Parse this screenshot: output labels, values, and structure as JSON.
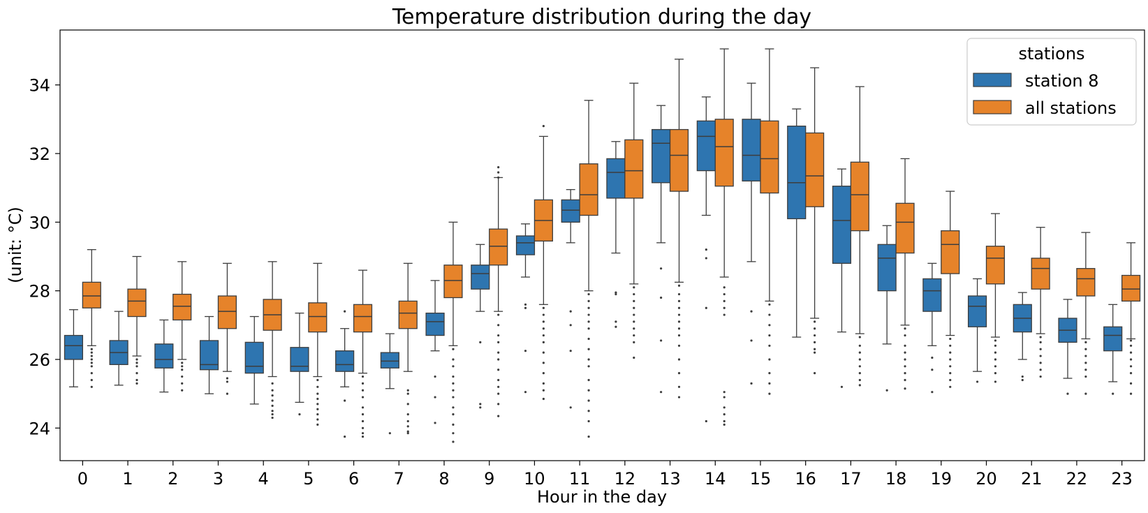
{
  "chart_data": {
    "type": "box",
    "title": "Temperature distribution during the day",
    "xlabel": "Hour in the day",
    "ylabel": "(unit: °C)",
    "ylim": [
      23.05,
      35.6
    ],
    "yticks": [
      24,
      26,
      28,
      30,
      32,
      34
    ],
    "categories": [
      "0",
      "1",
      "2",
      "3",
      "4",
      "5",
      "6",
      "7",
      "8",
      "9",
      "10",
      "11",
      "12",
      "13",
      "14",
      "15",
      "16",
      "17",
      "18",
      "19",
      "20",
      "21",
      "22",
      "23"
    ],
    "legend": {
      "title": "stations",
      "position": "top-right"
    },
    "grid": false,
    "series": [
      {
        "name": "station 8",
        "color": "#2e75b0",
        "boxes": [
          {
            "wlo": 25.2,
            "q1": 26.0,
            "med": 26.4,
            "q3": 26.7,
            "whi": 27.45,
            "outliers": []
          },
          {
            "wlo": 25.25,
            "q1": 25.85,
            "med": 26.2,
            "q3": 26.55,
            "whi": 27.4,
            "outliers": []
          },
          {
            "wlo": 25.05,
            "q1": 25.75,
            "med": 26.0,
            "q3": 26.45,
            "whi": 27.15,
            "outliers": []
          },
          {
            "wlo": 25.0,
            "q1": 25.7,
            "med": 25.85,
            "q3": 26.55,
            "whi": 27.25,
            "outliers": []
          },
          {
            "wlo": 24.7,
            "q1": 25.6,
            "med": 25.8,
            "q3": 26.5,
            "whi": 27.25,
            "outliers": []
          },
          {
            "wlo": 24.75,
            "q1": 25.65,
            "med": 25.8,
            "q3": 26.35,
            "whi": 27.35,
            "outliers": [
              24.4
            ]
          },
          {
            "wlo": 25.2,
            "q1": 25.65,
            "med": 25.85,
            "q3": 26.25,
            "whi": 26.9,
            "outliers": [
              27.4,
              24.8,
              23.75
            ]
          },
          {
            "wlo": 25.15,
            "q1": 25.75,
            "med": 25.95,
            "q3": 26.2,
            "whi": 26.75,
            "outliers": [
              23.85
            ]
          },
          {
            "wlo": 26.25,
            "q1": 26.7,
            "med": 27.1,
            "q3": 27.35,
            "whi": 28.3,
            "outliers": [
              25.5,
              24.9,
              24.15
            ]
          },
          {
            "wlo": 27.4,
            "q1": 28.05,
            "med": 28.5,
            "q3": 28.75,
            "whi": 29.35,
            "outliers": [
              26.5,
              24.7,
              24.6
            ]
          },
          {
            "wlo": 28.4,
            "q1": 29.05,
            "med": 29.4,
            "q3": 29.6,
            "whi": 29.95,
            "outliers": [
              27.6,
              27.5,
              26.25,
              25.05
            ]
          },
          {
            "wlo": 29.4,
            "q1": 30.0,
            "med": 30.35,
            "q3": 30.65,
            "whi": 30.95,
            "outliers": [
              27.4,
              27.0,
              26.25,
              24.6
            ]
          },
          {
            "wlo": 29.1,
            "q1": 30.7,
            "med": 31.45,
            "q3": 31.85,
            "whi": 32.35,
            "outliers": [
              27.95,
              27.9,
              27.1,
              26.95
            ]
          },
          {
            "wlo": 29.4,
            "q1": 31.15,
            "med": 32.3,
            "q3": 32.7,
            "whi": 33.4,
            "outliers": [
              28.65,
              27.8,
              26.55,
              25.05
            ]
          },
          {
            "wlo": 30.2,
            "q1": 31.5,
            "med": 32.5,
            "q3": 32.95,
            "whi": 33.65,
            "outliers": [
              29.2,
              28.95,
              27.5,
              24.2
            ]
          },
          {
            "wlo": 28.85,
            "q1": 31.2,
            "med": 31.95,
            "q3": 33.0,
            "whi": 34.05,
            "outliers": [
              27.4,
              26.55,
              25.3
            ]
          },
          {
            "wlo": 26.65,
            "q1": 30.1,
            "med": 31.15,
            "q3": 32.8,
            "whi": 33.3,
            "outliers": []
          },
          {
            "wlo": 26.8,
            "q1": 28.8,
            "med": 30.05,
            "q3": 31.05,
            "whi": 31.55,
            "outliers": [
              25.2
            ]
          },
          {
            "wlo": 26.45,
            "q1": 28.0,
            "med": 28.95,
            "q3": 29.35,
            "whi": 29.9,
            "outliers": [
              25.1
            ]
          },
          {
            "wlo": 26.4,
            "q1": 27.4,
            "med": 28.0,
            "q3": 28.35,
            "whi": 28.8,
            "outliers": [
              26.05,
              25.7,
              25.05
            ]
          },
          {
            "wlo": 25.65,
            "q1": 26.95,
            "med": 27.55,
            "q3": 27.85,
            "whi": 28.35,
            "outliers": [
              25.35
            ]
          },
          {
            "wlo": 26.0,
            "q1": 26.8,
            "med": 27.2,
            "q3": 27.6,
            "whi": 27.95,
            "outliers": [
              25.5,
              25.4
            ]
          },
          {
            "wlo": 25.45,
            "q1": 26.5,
            "med": 26.85,
            "q3": 27.2,
            "whi": 27.75,
            "outliers": [
              25.0
            ]
          },
          {
            "wlo": 25.35,
            "q1": 26.25,
            "med": 26.7,
            "q3": 26.95,
            "whi": 27.6,
            "outliers": [
              25.0
            ]
          }
        ]
      },
      {
        "name": "all stations",
        "color": "#e6832a",
        "boxes": [
          {
            "wlo": 26.4,
            "q1": 27.5,
            "med": 27.85,
            "q3": 28.25,
            "whi": 29.2,
            "outliers": [
              26.3,
              26.2,
              26.1,
              26.0,
              25.9,
              25.8,
              25.6,
              25.4,
              25.2
            ]
          },
          {
            "wlo": 26.1,
            "q1": 27.25,
            "med": 27.7,
            "q3": 28.05,
            "whi": 29.0,
            "outliers": [
              26.0,
              25.9,
              25.8,
              25.6,
              25.4,
              25.3
            ]
          },
          {
            "wlo": 26.0,
            "q1": 27.15,
            "med": 27.55,
            "q3": 27.9,
            "whi": 28.85,
            "outliers": [
              25.9,
              25.8,
              25.7,
              25.5,
              25.3,
              25.1
            ]
          },
          {
            "wlo": 25.65,
            "q1": 26.9,
            "med": 27.4,
            "q3": 27.85,
            "whi": 28.8,
            "outliers": [
              25.45,
              25.35,
              25.0
            ]
          },
          {
            "wlo": 25.5,
            "q1": 26.85,
            "med": 27.3,
            "q3": 27.75,
            "whi": 28.85,
            "outliers": [
              25.3,
              25.1,
              24.95,
              24.8,
              24.65,
              24.5,
              24.4,
              24.3
            ]
          },
          {
            "wlo": 25.5,
            "q1": 26.8,
            "med": 27.25,
            "q3": 27.65,
            "whi": 28.8,
            "outliers": [
              25.4,
              25.2,
              25.0,
              24.85,
              24.7,
              24.55,
              24.4,
              24.25,
              24.1
            ]
          },
          {
            "wlo": 25.6,
            "q1": 26.8,
            "med": 27.25,
            "q3": 27.6,
            "whi": 28.6,
            "outliers": [
              25.5,
              25.3,
              25.1,
              24.9,
              24.6,
              24.4,
              24.2,
              24.0,
              23.85,
              23.75
            ]
          },
          {
            "wlo": 25.65,
            "q1": 26.9,
            "med": 27.35,
            "q3": 27.7,
            "whi": 28.8,
            "outliers": [
              25.1,
              25.0,
              24.7,
              24.4,
              24.2,
              24.05,
              23.9,
              23.85
            ]
          },
          {
            "wlo": 26.4,
            "q1": 27.8,
            "med": 28.3,
            "q3": 28.75,
            "whi": 30.0,
            "outliers": [
              26.3,
              26.0,
              25.8,
              25.5,
              25.3,
              25.1,
              24.9,
              24.6,
              24.4,
              24.1,
              23.85,
              23.6
            ]
          },
          {
            "wlo": 27.4,
            "q1": 28.75,
            "med": 29.3,
            "q3": 29.8,
            "whi": 31.3,
            "outliers": [
              31.6,
              31.45,
              31.3,
              27.3,
              27.0,
              26.7,
              26.5,
              26.2,
              26.0,
              25.7,
              25.4,
              25.2,
              25.0,
              24.7,
              24.35
            ]
          },
          {
            "wlo": 27.6,
            "q1": 29.45,
            "med": 30.05,
            "q3": 30.65,
            "whi": 32.5,
            "outliers": [
              32.8,
              27.5,
              27.3,
              27.1,
              26.9,
              26.7,
              26.5,
              26.2,
              25.9,
              25.6,
              25.3,
              25.1,
              24.85
            ]
          },
          {
            "wlo": 28.0,
            "q1": 30.2,
            "med": 30.8,
            "q3": 31.7,
            "whi": 33.55,
            "outliers": [
              27.9,
              27.7,
              27.5,
              27.3,
              27.1,
              26.9,
              26.6,
              26.3,
              26.0,
              25.8,
              25.4,
              25.1,
              24.8,
              24.5,
              24.2,
              23.75
            ]
          },
          {
            "wlo": 28.2,
            "q1": 30.7,
            "med": 31.5,
            "q3": 32.4,
            "whi": 34.05,
            "outliers": [
              28.1,
              27.9,
              27.7,
              27.5,
              27.3,
              27.1,
              26.9,
              26.7,
              26.5,
              26.05
            ]
          },
          {
            "wlo": 28.25,
            "q1": 30.9,
            "med": 31.95,
            "q3": 32.7,
            "whi": 34.75,
            "outliers": [
              28.15,
              27.9,
              27.7,
              27.5,
              27.3,
              27.1,
              26.9,
              26.7,
              26.4,
              26.0,
              25.6,
              25.2,
              24.9
            ]
          },
          {
            "wlo": 28.4,
            "q1": 31.05,
            "med": 32.2,
            "q3": 33.0,
            "whi": 35.05,
            "outliers": [
              28.1,
              27.9,
              27.7,
              27.5,
              27.3,
              25.05,
              24.9,
              24.6,
              24.4,
              24.2,
              24.1
            ]
          },
          {
            "wlo": 27.7,
            "q1": 30.85,
            "med": 31.85,
            "q3": 32.95,
            "whi": 35.05,
            "outliers": [
              27.6,
              27.3,
              27.0,
              26.7,
              26.4,
              26.0,
              25.6,
              25.3,
              25.0
            ]
          },
          {
            "wlo": 27.2,
            "q1": 30.45,
            "med": 31.35,
            "q3": 32.6,
            "whi": 34.5,
            "outliers": [
              27.1,
              26.9,
              26.7,
              26.5,
              26.3,
              26.2,
              25.6
            ]
          },
          {
            "wlo": 26.75,
            "q1": 29.75,
            "med": 30.8,
            "q3": 31.75,
            "whi": 33.95,
            "outliers": [
              26.65,
              26.4,
              26.2,
              26.0,
              25.8,
              25.6,
              25.4,
              25.25
            ]
          },
          {
            "wlo": 27.0,
            "q1": 29.1,
            "med": 30.0,
            "q3": 30.55,
            "whi": 31.85,
            "outliers": [
              26.9,
              26.7,
              26.4,
              26.2,
              26.0,
              25.8,
              25.6,
              25.4,
              25.15
            ]
          },
          {
            "wlo": 26.7,
            "q1": 28.5,
            "med": 29.35,
            "q3": 29.75,
            "whi": 30.9,
            "outliers": [
              26.6,
              26.4,
              26.2,
              26.0,
              25.8,
              25.6,
              25.4,
              25.2
            ]
          },
          {
            "wlo": 26.65,
            "q1": 28.2,
            "med": 28.95,
            "q3": 29.3,
            "whi": 30.25,
            "outliers": [
              26.55,
              26.4,
              26.2,
              26.0,
              25.8,
              25.6,
              25.35
            ]
          },
          {
            "wlo": 26.75,
            "q1": 28.05,
            "med": 28.65,
            "q3": 28.95,
            "whi": 29.85,
            "outliers": [
              26.65,
              26.5,
              26.3,
              26.1,
              25.9,
              25.7,
              25.5
            ]
          },
          {
            "wlo": 26.6,
            "q1": 27.85,
            "med": 28.35,
            "q3": 28.65,
            "whi": 29.7,
            "outliers": [
              26.5,
              26.3,
              26.1,
              25.9,
              25.7,
              25.5,
              25.0
            ]
          },
          {
            "wlo": 26.6,
            "q1": 27.7,
            "med": 28.05,
            "q3": 28.45,
            "whi": 29.4,
            "outliers": [
              26.55,
              26.4,
              26.2,
              26.0,
              25.8,
              25.6,
              25.3,
              25.0
            ]
          }
        ]
      }
    ]
  }
}
